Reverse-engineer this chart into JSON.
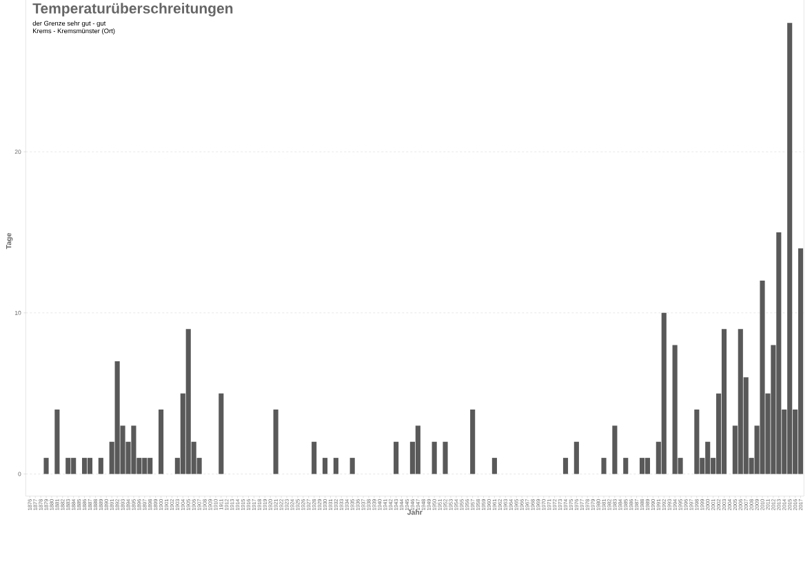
{
  "chart_data": {
    "type": "bar",
    "title": "Temperaturüberschreitungen",
    "subtitle": "der Grenze sehr gut - gut",
    "annotations": [
      "Krems - Kremsmünster (Ort)"
    ],
    "xlabel": "Jahr",
    "ylabel": "Tage",
    "categories": [
      "1876",
      "1877",
      "1878",
      "1879",
      "1880",
      "1881",
      "1882",
      "1883",
      "1884",
      "1885",
      "1886",
      "1887",
      "1888",
      "1889",
      "1890",
      "1891",
      "1892",
      "1893",
      "1894",
      "1895",
      "1896",
      "1897",
      "1898",
      "1899",
      "1900",
      "1901",
      "1902",
      "1903",
      "1904",
      "1905",
      "1906",
      "1907",
      "1908",
      "1909",
      "1910",
      "1911",
      "1912",
      "1913",
      "1914",
      "1915",
      "1916",
      "1917",
      "1918",
      "1919",
      "1920",
      "1921",
      "1922",
      "1923",
      "1924",
      "1925",
      "1926",
      "1927",
      "1928",
      "1929",
      "1930",
      "1931",
      "1932",
      "1933",
      "1934",
      "1935",
      "1936",
      "1937",
      "1938",
      "1939",
      "1940",
      "1941",
      "1942",
      "1943",
      "1944",
      "1945",
      "1946",
      "1947",
      "1948",
      "1949",
      "1950",
      "1951",
      "1952",
      "1953",
      "1954",
      "1955",
      "1956",
      "1957",
      "1958",
      "1959",
      "1960",
      "1961",
      "1962",
      "1963",
      "1964",
      "1965",
      "1966",
      "1967",
      "1968",
      "1969",
      "1970",
      "1971",
      "1972",
      "1973",
      "1974",
      "1975",
      "1976",
      "1977",
      "1978",
      "1979",
      "1980",
      "1981",
      "1982",
      "1983",
      "1984",
      "1985",
      "1986",
      "1987",
      "1988",
      "1989",
      "1990",
      "1991",
      "1992",
      "1993",
      "1994",
      "1995",
      "1996",
      "1997",
      "1998",
      "1999",
      "2000",
      "2001",
      "2002",
      "2003",
      "2004",
      "2005",
      "2006",
      "2007",
      "2008",
      "2009",
      "2010",
      "2011",
      "2012",
      "2013",
      "2014",
      "2015",
      "2016",
      "2017"
    ],
    "values": [
      0,
      0,
      0,
      1,
      0,
      4,
      0,
      1,
      1,
      0,
      1,
      1,
      0,
      1,
      0,
      2,
      7,
      3,
      2,
      3,
      1,
      1,
      1,
      0,
      4,
      0,
      0,
      1,
      5,
      9,
      2,
      1,
      0,
      0,
      0,
      5,
      0,
      0,
      0,
      0,
      0,
      0,
      0,
      0,
      0,
      4,
      0,
      0,
      0,
      0,
      0,
      0,
      2,
      0,
      1,
      0,
      1,
      0,
      0,
      1,
      0,
      0,
      0,
      0,
      0,
      0,
      0,
      2,
      0,
      0,
      2,
      3,
      0,
      0,
      2,
      0,
      2,
      0,
      0,
      0,
      0,
      4,
      0,
      0,
      0,
      1,
      0,
      0,
      0,
      0,
      0,
      0,
      0,
      0,
      0,
      0,
      0,
      0,
      1,
      0,
      2,
      0,
      0,
      0,
      0,
      1,
      0,
      3,
      0,
      1,
      0,
      0,
      1,
      1,
      0,
      2,
      10,
      0,
      8,
      1,
      0,
      0,
      4,
      1,
      2,
      1,
      5,
      9,
      0,
      3,
      9,
      6,
      1,
      3,
      12,
      5,
      8,
      15,
      4,
      28,
      4,
      14
    ],
    "color": "#595959",
    "ylim": [
      -1.37,
      30.3
    ],
    "yticks": [
      0,
      10,
      20
    ],
    "grid": "y"
  }
}
